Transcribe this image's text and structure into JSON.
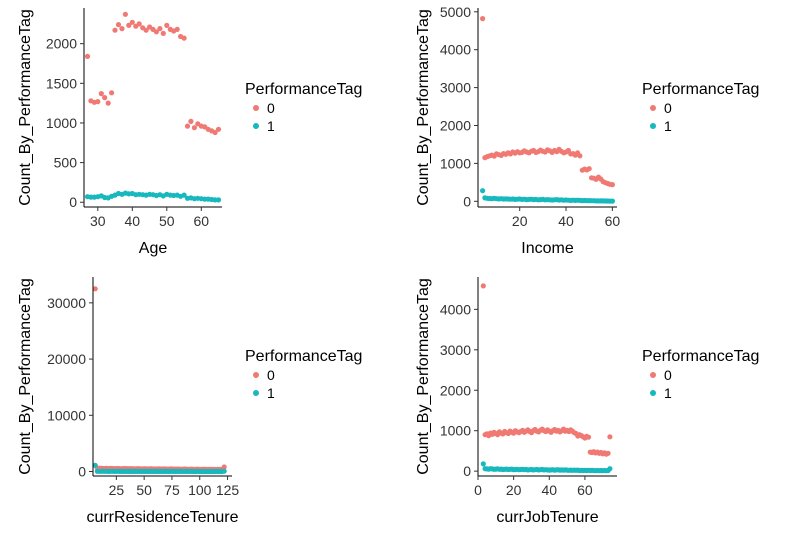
{
  "colors": {
    "tag0": "#f07a73",
    "tag1": "#17b8be"
  },
  "legend": {
    "title": "PerformanceTag",
    "entries": [
      {
        "label": "0",
        "color": "#f07a73"
      },
      {
        "label": "1",
        "color": "#17b8be"
      }
    ]
  },
  "chart_data": [
    {
      "type": "scatter",
      "xlabel": "Age",
      "ylabel": "Count_By_PerformanceTag",
      "xlim": [
        26,
        66
      ],
      "ylim": [
        -60,
        2450
      ],
      "xticks": [
        30,
        40,
        50,
        60
      ],
      "yticks": [
        0,
        500,
        1000,
        1500,
        2000
      ],
      "grid": false,
      "legend_position": "right",
      "series": [
        {
          "name": "0",
          "x": [
            27,
            28,
            29,
            30,
            31,
            32,
            33,
            34,
            35,
            36,
            37,
            38,
            39,
            40,
            41,
            42,
            43,
            44,
            45,
            46,
            47,
            48,
            49,
            50,
            51,
            52,
            53,
            54,
            55,
            56,
            57,
            58,
            59,
            60,
            61,
            62,
            63,
            64,
            65
          ],
          "y": [
            1840,
            1280,
            1260,
            1270,
            1370,
            1320,
            1250,
            1380,
            2170,
            2240,
            2190,
            2370,
            2230,
            2270,
            2220,
            2250,
            2200,
            2170,
            2210,
            2180,
            2150,
            2190,
            2130,
            2230,
            2180,
            2160,
            2180,
            2090,
            2070,
            960,
            1020,
            940,
            990,
            960,
            950,
            920,
            900,
            880,
            920
          ]
        },
        {
          "name": "1",
          "x": [
            27,
            28,
            29,
            30,
            31,
            32,
            33,
            34,
            35,
            36,
            37,
            38,
            39,
            40,
            41,
            42,
            43,
            44,
            45,
            46,
            47,
            48,
            49,
            50,
            51,
            52,
            53,
            54,
            55,
            56,
            57,
            58,
            59,
            60,
            61,
            62,
            63,
            64,
            65
          ],
          "y": [
            70,
            65,
            65,
            70,
            80,
            60,
            55,
            75,
            90,
            110,
            100,
            115,
            105,
            110,
            95,
            100,
            95,
            90,
            100,
            95,
            85,
            95,
            80,
            100,
            90,
            85,
            90,
            75,
            90,
            50,
            55,
            45,
            50,
            45,
            40,
            40,
            35,
            30,
            30
          ]
        }
      ]
    },
    {
      "type": "scatter",
      "xlabel": "Income",
      "ylabel": "Count_By_PerformanceTag",
      "xlim": [
        2,
        62
      ],
      "ylim": [
        -150,
        5100
      ],
      "xticks": [
        20,
        40,
        60
      ],
      "yticks": [
        0,
        1000,
        2000,
        3000,
        4000,
        5000
      ],
      "grid": false,
      "legend_position": "right",
      "series": [
        {
          "name": "0",
          "x": [
            4,
            5,
            6,
            7,
            8,
            9,
            10,
            11,
            12,
            13,
            14,
            15,
            16,
            17,
            18,
            19,
            20,
            21,
            22,
            23,
            24,
            25,
            26,
            27,
            28,
            29,
            30,
            31,
            32,
            33,
            34,
            35,
            36,
            37,
            38,
            39,
            40,
            41,
            42,
            43,
            44,
            45,
            46,
            47,
            48,
            49,
            50,
            51,
            52,
            53,
            54,
            55,
            56,
            57,
            58,
            59,
            60
          ],
          "y": [
            4820,
            1150,
            1180,
            1200,
            1220,
            1190,
            1250,
            1230,
            1210,
            1260,
            1240,
            1280,
            1250,
            1300,
            1270,
            1310,
            1280,
            1290,
            1330,
            1300,
            1280,
            1320,
            1340,
            1290,
            1310,
            1350,
            1320,
            1300,
            1360,
            1330,
            1290,
            1340,
            1310,
            1370,
            1320,
            1280,
            1300,
            1340,
            1250,
            1260,
            1220,
            1280,
            1200,
            820,
            850,
            830,
            860,
            620,
            610,
            580,
            640,
            590,
            520,
            490,
            470,
            450,
            440
          ]
        },
        {
          "name": "1",
          "x": [
            4,
            5,
            6,
            7,
            8,
            9,
            10,
            11,
            12,
            13,
            14,
            15,
            16,
            17,
            18,
            19,
            20,
            21,
            22,
            23,
            24,
            25,
            26,
            27,
            28,
            29,
            30,
            31,
            32,
            33,
            34,
            35,
            36,
            37,
            38,
            39,
            40,
            41,
            42,
            43,
            44,
            45,
            46,
            47,
            48,
            49,
            50,
            51,
            52,
            53,
            54,
            55,
            56,
            57,
            58,
            59,
            60
          ],
          "y": [
            280,
            90,
            80,
            75,
            70,
            80,
            70,
            65,
            70,
            60,
            65,
            60,
            55,
            60,
            50,
            55,
            60,
            50,
            55,
            45,
            50,
            55,
            45,
            50,
            40,
            45,
            50,
            40,
            45,
            40,
            35,
            40,
            45,
            35,
            40,
            30,
            35,
            30,
            25,
            30,
            25,
            30,
            25,
            20,
            22,
            20,
            18,
            15,
            15,
            12,
            12,
            10,
            10,
            8,
            8,
            6,
            5
          ]
        }
      ]
    },
    {
      "type": "scatter",
      "xlabel": "currResidenceTenure",
      "ylabel": "Count_By_PerformanceTag",
      "xlim": [
        4,
        129
      ],
      "ylim": [
        -800,
        34600
      ],
      "xticks": [
        25,
        50,
        75,
        100,
        125
      ],
      "yticks": [
        0,
        10000,
        20000,
        30000
      ],
      "grid": false,
      "legend_position": "right",
      "series": [
        {
          "name": "0",
          "x": [
            6,
            8,
            10,
            12,
            14,
            16,
            18,
            20,
            22,
            24,
            26,
            28,
            30,
            32,
            34,
            36,
            38,
            40,
            42,
            44,
            46,
            48,
            50,
            52,
            54,
            56,
            58,
            60,
            62,
            64,
            66,
            68,
            70,
            72,
            74,
            76,
            78,
            80,
            82,
            84,
            86,
            88,
            90,
            92,
            94,
            96,
            98,
            100,
            102,
            104,
            106,
            108,
            110,
            112,
            114,
            116,
            118,
            120,
            122
          ],
          "y": [
            32500,
            600,
            580,
            560,
            540,
            560,
            520,
            550,
            530,
            510,
            540,
            520,
            500,
            530,
            510,
            490,
            520,
            500,
            480,
            510,
            490,
            470,
            500,
            480,
            460,
            490,
            470,
            450,
            480,
            460,
            440,
            470,
            450,
            430,
            460,
            440,
            420,
            450,
            430,
            410,
            440,
            420,
            400,
            430,
            410,
            390,
            420,
            400,
            380,
            410,
            390,
            370,
            400,
            380,
            360,
            390,
            370,
            350,
            800
          ]
        },
        {
          "name": "1",
          "x": [
            6,
            8,
            10,
            12,
            14,
            16,
            18,
            20,
            22,
            24,
            26,
            28,
            30,
            32,
            34,
            36,
            38,
            40,
            42,
            44,
            46,
            48,
            50,
            52,
            54,
            56,
            58,
            60,
            62,
            64,
            66,
            68,
            70,
            72,
            74,
            76,
            78,
            80,
            82,
            84,
            86,
            88,
            90,
            92,
            94,
            96,
            98,
            100,
            102,
            104,
            106,
            108,
            110,
            112,
            114,
            116,
            118,
            120,
            122
          ],
          "y": [
            1100,
            40,
            35,
            30,
            35,
            30,
            25,
            30,
            28,
            25,
            28,
            26,
            24,
            26,
            24,
            22,
            24,
            22,
            20,
            22,
            20,
            18,
            20,
            18,
            16,
            18,
            16,
            15,
            16,
            15,
            14,
            15,
            14,
            13,
            14,
            13,
            12,
            13,
            12,
            11,
            12,
            11,
            10,
            11,
            10,
            9,
            10,
            9,
            8,
            9,
            8,
            7,
            8,
            7,
            6,
            7,
            6,
            5,
            60
          ]
        }
      ]
    },
    {
      "type": "scatter",
      "xlabel": "currJobTenure",
      "ylabel": "Count_By_PerformanceTag",
      "xlim": [
        0,
        78
      ],
      "ylim": [
        -120,
        4800
      ],
      "xticks": [
        0,
        20,
        40,
        60
      ],
      "yticks": [
        0,
        1000,
        2000,
        3000,
        4000
      ],
      "grid": false,
      "legend_position": "right",
      "series": [
        {
          "name": "0",
          "x": [
            3,
            4,
            5,
            6,
            7,
            8,
            9,
            10,
            11,
            12,
            13,
            14,
            15,
            16,
            17,
            18,
            19,
            20,
            21,
            22,
            23,
            24,
            25,
            26,
            27,
            28,
            29,
            30,
            31,
            32,
            33,
            34,
            35,
            36,
            37,
            38,
            39,
            40,
            41,
            42,
            43,
            44,
            45,
            46,
            47,
            48,
            49,
            50,
            51,
            52,
            53,
            54,
            55,
            56,
            57,
            58,
            59,
            60,
            61,
            62,
            63,
            64,
            65,
            66,
            67,
            68,
            69,
            70,
            71,
            72,
            73,
            74
          ],
          "y": [
            4580,
            900,
            920,
            880,
            940,
            910,
            960,
            930,
            900,
            970,
            940,
            920,
            980,
            950,
            930,
            990,
            960,
            940,
            1000,
            970,
            950,
            980,
            1010,
            960,
            990,
            1020,
            980,
            950,
            1000,
            1030,
            990,
            970,
            1010,
            1040,
            1000,
            980,
            1020,
            990,
            960,
            1000,
            1030,
            990,
            1010,
            970,
            1000,
            1040,
            990,
            1010,
            980,
            1020,
            990,
            950,
            930,
            870,
            900,
            880,
            850,
            820,
            860,
            840,
            470,
            460,
            480,
            450,
            470,
            440,
            460,
            430,
            450,
            420,
            440,
            850
          ]
        },
        {
          "name": "1",
          "x": [
            3,
            4,
            5,
            6,
            7,
            8,
            9,
            10,
            11,
            12,
            13,
            14,
            15,
            16,
            17,
            18,
            19,
            20,
            21,
            22,
            23,
            24,
            25,
            26,
            27,
            28,
            29,
            30,
            31,
            32,
            33,
            34,
            35,
            36,
            37,
            38,
            39,
            40,
            41,
            42,
            43,
            44,
            45,
            46,
            47,
            48,
            49,
            50,
            51,
            52,
            53,
            54,
            55,
            56,
            57,
            58,
            59,
            60,
            61,
            62,
            63,
            64,
            65,
            66,
            67,
            68,
            69,
            70,
            71,
            72,
            73,
            74
          ],
          "y": [
            180,
            60,
            55,
            50,
            60,
            55,
            45,
            50,
            55,
            45,
            50,
            40,
            45,
            50,
            40,
            45,
            50,
            35,
            40,
            45,
            35,
            40,
            45,
            35,
            40,
            30,
            35,
            40,
            30,
            35,
            40,
            30,
            35,
            40,
            30,
            35,
            30,
            25,
            30,
            35,
            25,
            30,
            35,
            25,
            30,
            25,
            30,
            25,
            20,
            25,
            20,
            25,
            20,
            25,
            15,
            20,
            15,
            20,
            15,
            20,
            15,
            20,
            15,
            10,
            15,
            10,
            15,
            10,
            15,
            10,
            15,
            60
          ]
        }
      ]
    }
  ]
}
